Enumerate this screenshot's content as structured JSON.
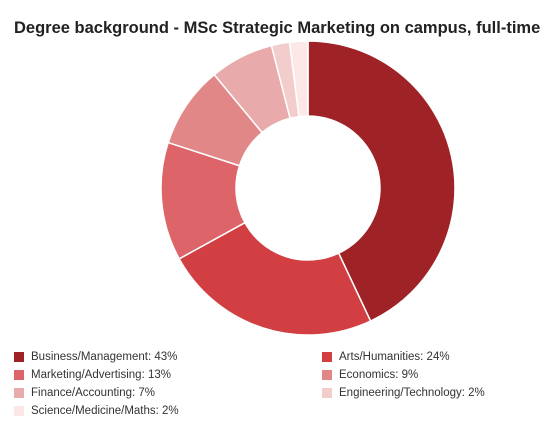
{
  "chart_data": {
    "type": "pie",
    "title": "Degree background - MSc Strategic Marketing on campus, full-time",
    "categories": [
      "Business/Management",
      "Arts/Humanities",
      "Marketing/Advertising",
      "Economics",
      "Finance/Accounting",
      "Engineering/Technology",
      "Science/Medicine/Maths"
    ],
    "values": [
      43,
      24,
      13,
      9,
      7,
      2,
      2
    ],
    "unit": "%",
    "colors": [
      "#9e2226",
      "#d13f43",
      "#dd6468",
      "#e18788",
      "#e9aaab",
      "#f3cccc",
      "#fde8e8"
    ],
    "legend_labels": [
      "Business/Management: 43%",
      "Arts/Humanities: 24%",
      "Marketing/Advertising: 13%",
      "Economics: 9%",
      "Finance/Accounting: 7%",
      "Engineering/Technology: 2%",
      "Science/Medicine/Maths: 2%"
    ],
    "legend_position": "bottom",
    "donut": true
  }
}
